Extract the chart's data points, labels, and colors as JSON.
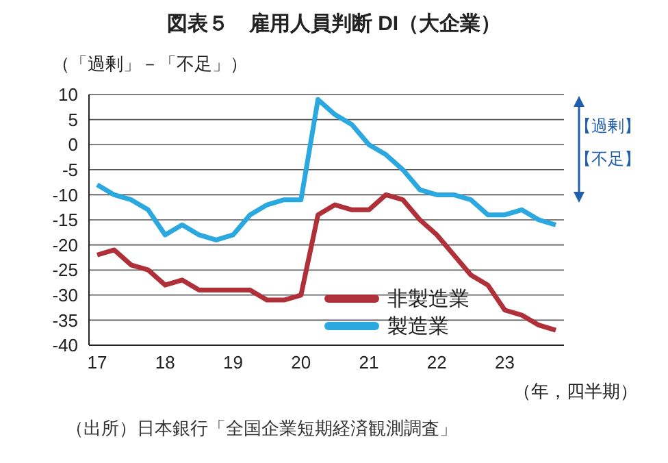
{
  "chart_data": {
    "type": "line",
    "title": "図表５　雇用人員判断 DI（大企業）",
    "ylabel": "（「過剰」－「不足」）",
    "xlabel": "（年，四半期）",
    "annotations": [
      "【過剰】",
      "【不足】",
      "（出所）日本銀行「全国企業短期経済観測調査」"
    ],
    "categories": [
      "17",
      null,
      null,
      null,
      "18",
      null,
      null,
      null,
      "19",
      null,
      null,
      null,
      "20",
      null,
      null,
      null,
      "21",
      null,
      null,
      null,
      "22",
      null,
      null,
      null,
      "23",
      null,
      null,
      null
    ],
    "series": [
      {
        "name": "非製造業",
        "color": "#b0303a",
        "values": [
          -22,
          -21,
          -24,
          -25,
          -28,
          -27,
          -29,
          -29,
          -29,
          -29,
          -31,
          -31,
          -30,
          -14,
          -12,
          -13,
          -13,
          -10,
          -11,
          -15,
          -18,
          -22,
          -26,
          -28,
          -33,
          -34,
          -36,
          -37
        ]
      },
      {
        "name": "製造業",
        "color": "#2aa8df",
        "values": [
          -8,
          -10,
          -11,
          -13,
          -18,
          -16,
          -18,
          -19,
          -18,
          -14,
          -12,
          -11,
          -11,
          9,
          6,
          4,
          0,
          -2,
          -5,
          -9,
          -10,
          -10,
          -11,
          -14,
          -14,
          -13,
          -15,
          -16
        ]
      }
    ],
    "ylim": [
      -40,
      10
    ],
    "yticks": [
      10,
      5,
      0,
      -5,
      -10,
      -15,
      -20,
      -25,
      -30,
      -35,
      -40
    ],
    "grid": "y",
    "legend": "bottom right",
    "marker": "none",
    "line_style": "solid"
  }
}
